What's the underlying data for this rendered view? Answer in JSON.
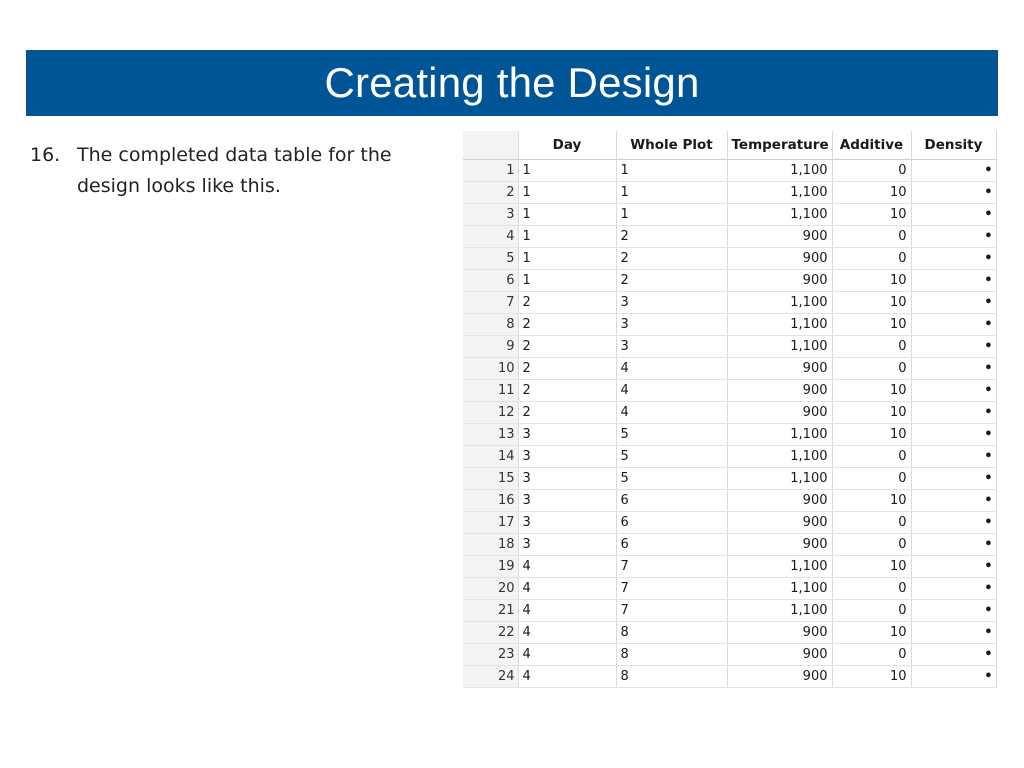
{
  "slide": {
    "title": "Creating the Design",
    "step_number": "16.",
    "step_text": "The completed data table for the design looks like this."
  },
  "table": {
    "columns": [
      "Day",
      "Whole Plot",
      "Temperature",
      "Additive",
      "Density"
    ],
    "rows": [
      {
        "n": "1",
        "day": "1",
        "wp": "1",
        "temp": "1,100",
        "add": "0",
        "den": "•"
      },
      {
        "n": "2",
        "day": "1",
        "wp": "1",
        "temp": "1,100",
        "add": "10",
        "den": "•"
      },
      {
        "n": "3",
        "day": "1",
        "wp": "1",
        "temp": "1,100",
        "add": "10",
        "den": "•"
      },
      {
        "n": "4",
        "day": "1",
        "wp": "2",
        "temp": "900",
        "add": "0",
        "den": "•"
      },
      {
        "n": "5",
        "day": "1",
        "wp": "2",
        "temp": "900",
        "add": "0",
        "den": "•"
      },
      {
        "n": "6",
        "day": "1",
        "wp": "2",
        "temp": "900",
        "add": "10",
        "den": "•"
      },
      {
        "n": "7",
        "day": "2",
        "wp": "3",
        "temp": "1,100",
        "add": "10",
        "den": "•"
      },
      {
        "n": "8",
        "day": "2",
        "wp": "3",
        "temp": "1,100",
        "add": "10",
        "den": "•"
      },
      {
        "n": "9",
        "day": "2",
        "wp": "3",
        "temp": "1,100",
        "add": "0",
        "den": "•"
      },
      {
        "n": "10",
        "day": "2",
        "wp": "4",
        "temp": "900",
        "add": "0",
        "den": "•"
      },
      {
        "n": "11",
        "day": "2",
        "wp": "4",
        "temp": "900",
        "add": "10",
        "den": "•"
      },
      {
        "n": "12",
        "day": "2",
        "wp": "4",
        "temp": "900",
        "add": "10",
        "den": "•"
      },
      {
        "n": "13",
        "day": "3",
        "wp": "5",
        "temp": "1,100",
        "add": "10",
        "den": "•"
      },
      {
        "n": "14",
        "day": "3",
        "wp": "5",
        "temp": "1,100",
        "add": "0",
        "den": "•"
      },
      {
        "n": "15",
        "day": "3",
        "wp": "5",
        "temp": "1,100",
        "add": "0",
        "den": "•"
      },
      {
        "n": "16",
        "day": "3",
        "wp": "6",
        "temp": "900",
        "add": "10",
        "den": "•"
      },
      {
        "n": "17",
        "day": "3",
        "wp": "6",
        "temp": "900",
        "add": "0",
        "den": "•"
      },
      {
        "n": "18",
        "day": "3",
        "wp": "6",
        "temp": "900",
        "add": "0",
        "den": "•"
      },
      {
        "n": "19",
        "day": "4",
        "wp": "7",
        "temp": "1,100",
        "add": "10",
        "den": "•"
      },
      {
        "n": "20",
        "day": "4",
        "wp": "7",
        "temp": "1,100",
        "add": "0",
        "den": "•"
      },
      {
        "n": "21",
        "day": "4",
        "wp": "7",
        "temp": "1,100",
        "add": "0",
        "den": "•"
      },
      {
        "n": "22",
        "day": "4",
        "wp": "8",
        "temp": "900",
        "add": "10",
        "den": "•"
      },
      {
        "n": "23",
        "day": "4",
        "wp": "8",
        "temp": "900",
        "add": "0",
        "den": "•"
      },
      {
        "n": "24",
        "day": "4",
        "wp": "8",
        "temp": "900",
        "add": "10",
        "den": "•"
      }
    ]
  },
  "colors": {
    "title_bar": "#005596",
    "title_text": "#ffffff"
  }
}
